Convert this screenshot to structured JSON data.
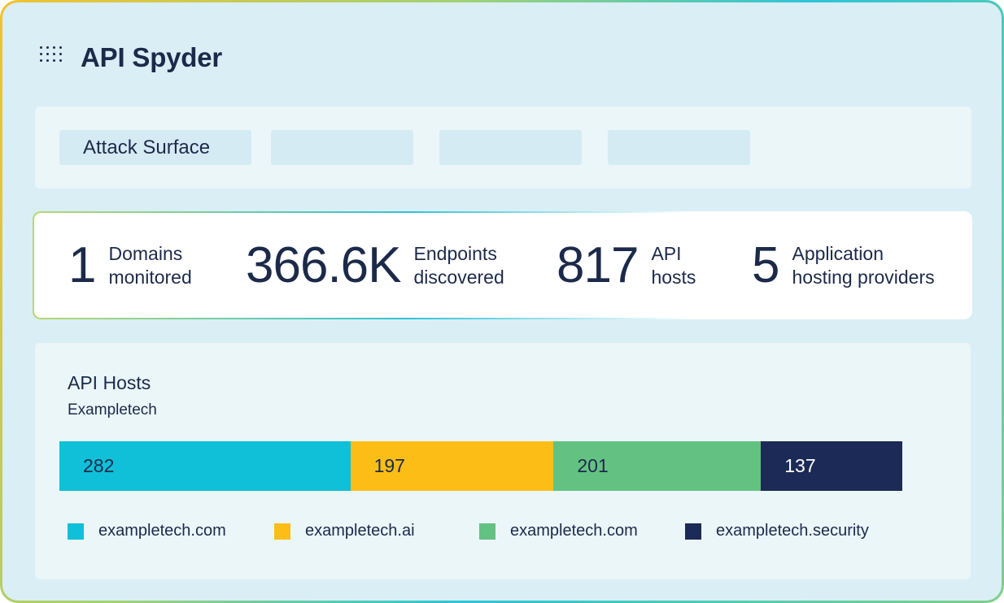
{
  "app": {
    "title": "API Spyder",
    "icon": "grid-dots-icon"
  },
  "tabs": [
    {
      "label": "Attack Surface"
    },
    {
      "label": ""
    },
    {
      "label": ""
    },
    {
      "label": ""
    }
  ],
  "stats": [
    {
      "value": "1",
      "label": "Domains\nmonitored"
    },
    {
      "value": "366.6K",
      "label": "Endpoints\ndiscovered"
    },
    {
      "value": "817",
      "label": "API\nhosts"
    },
    {
      "value": "5",
      "label": "Application\nhosting providers"
    }
  ],
  "api_hosts": {
    "title": "API Hosts",
    "subtitle": "Exampletech",
    "segments": [
      {
        "value": "282",
        "label": "exampletech.com",
        "color": "#0fc0d8",
        "text_color": "#1c2a4a"
      },
      {
        "value": "197",
        "label": "exampletech.ai",
        "color": "#fcbe16",
        "text_color": "#1c2a4a"
      },
      {
        "value": "201",
        "label": "exampletech.com",
        "color": "#63c281",
        "text_color": "#1c2a4a"
      },
      {
        "value": "137",
        "label": "exampletech.security",
        "color": "#1c2a57",
        "text_color": "#ffffff"
      }
    ]
  },
  "chart_data": {
    "type": "bar",
    "orientation": "horizontal-stacked",
    "title": "API Hosts",
    "subtitle": "Exampletech",
    "categories": [
      "exampletech.com",
      "exampletech.ai",
      "exampletech.com",
      "exampletech.security"
    ],
    "values": [
      282,
      197,
      201,
      137
    ],
    "legend": "bottom"
  }
}
